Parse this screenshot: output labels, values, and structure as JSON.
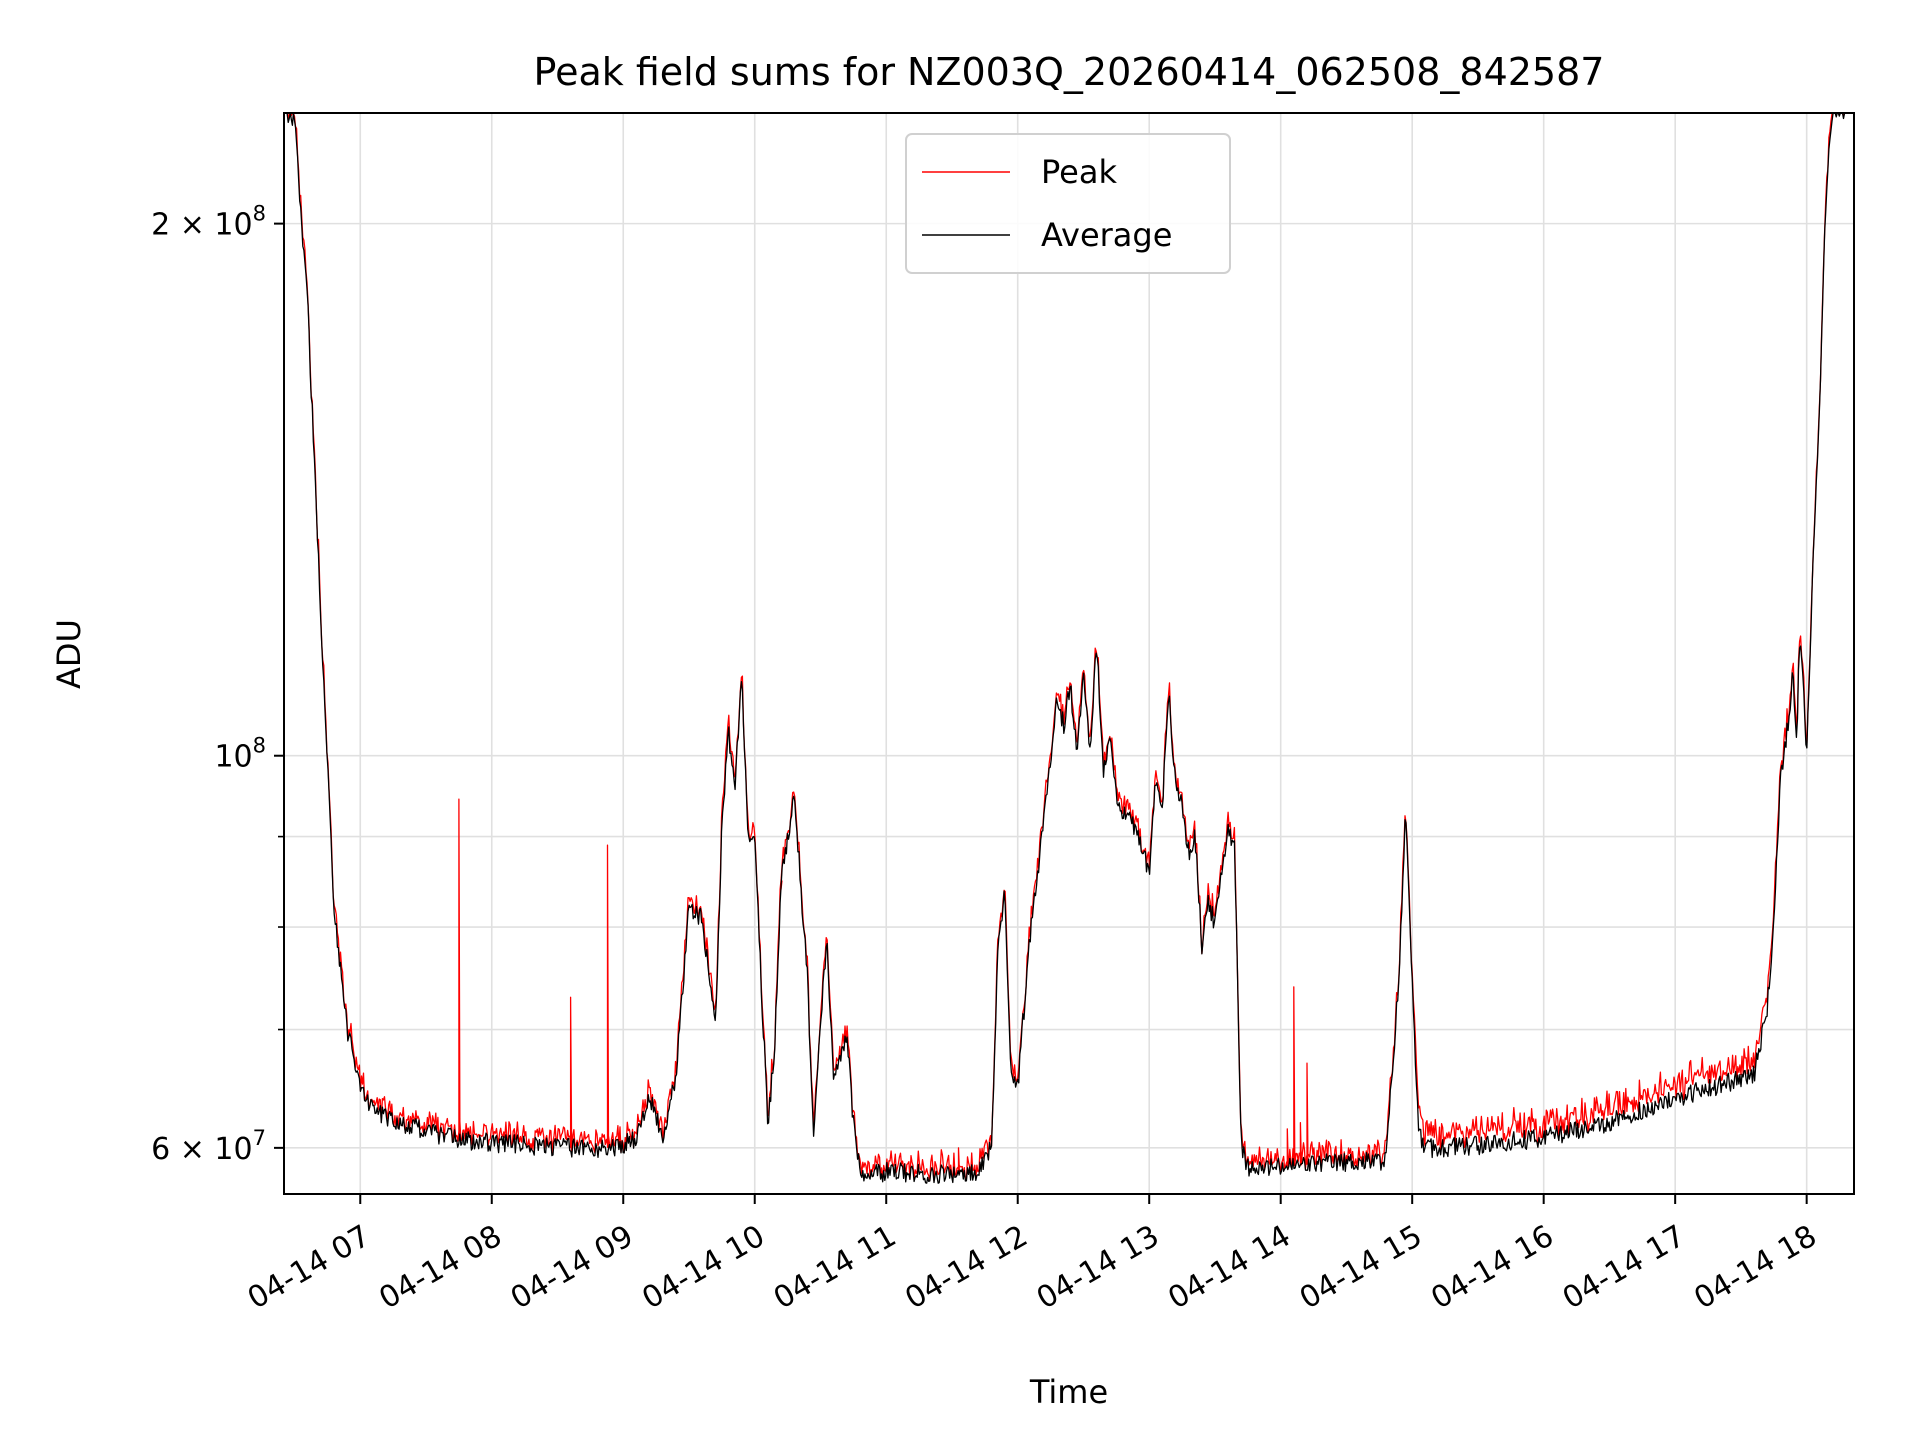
{
  "chart_data": {
    "type": "line",
    "title": "Peak field sums for NZ003Q_20260414_062508_842587",
    "xlabel": "Time",
    "ylabel": "ADU",
    "yscale": "log",
    "ylim": [
      56500000,
      231000000
    ],
    "xlim": [
      6.42,
      18.36
    ],
    "grid": true,
    "legend_position": "upper center",
    "x_ticks": [
      {
        "value": 7,
        "label": "04-14 07"
      },
      {
        "value": 8,
        "label": "04-14 08"
      },
      {
        "value": 9,
        "label": "04-14 09"
      },
      {
        "value": 10,
        "label": "04-14 10"
      },
      {
        "value": 11,
        "label": "04-14 11"
      },
      {
        "value": 12,
        "label": "04-14 12"
      },
      {
        "value": 13,
        "label": "04-14 13"
      },
      {
        "value": 14,
        "label": "04-14 14"
      },
      {
        "value": 15,
        "label": "04-14 15"
      },
      {
        "value": 16,
        "label": "04-14 16"
      },
      {
        "value": 17,
        "label": "04-14 17"
      },
      {
        "value": 18,
        "label": "04-14 18"
      }
    ],
    "y_major_ticks": [
      {
        "value": 60000000,
        "label": "6 × 10⁷",
        "base": "6 × 10",
        "exp": "7"
      },
      {
        "value": 100000000,
        "label": "10⁸",
        "base": "10",
        "exp": "8"
      },
      {
        "value": 200000000,
        "label": "2 × 10⁸",
        "base": "2 × 10",
        "exp": "8"
      }
    ],
    "y_minor_ticks": [
      70000000,
      80000000,
      90000000
    ],
    "series": [
      {
        "name": "Peak",
        "color": "#ff0000"
      },
      {
        "name": "Average",
        "color": "#000000"
      }
    ],
    "average_profile": {
      "x": [
        6.42,
        6.5,
        6.6,
        6.7,
        6.8,
        6.9,
        7.0,
        7.1,
        7.3,
        7.6,
        7.8,
        8.0,
        8.3,
        8.6,
        8.9,
        9.1,
        9.2,
        9.3,
        9.4,
        9.5,
        9.6,
        9.7,
        9.75,
        9.8,
        9.85,
        9.9,
        9.95,
        10.0,
        10.05,
        10.1,
        10.15,
        10.2,
        10.3,
        10.4,
        10.45,
        10.5,
        10.55,
        10.6,
        10.65,
        10.7,
        10.75,
        10.8,
        10.85,
        10.95,
        11.0,
        11.3,
        11.7,
        11.8,
        11.85,
        11.9,
        11.95,
        12.0,
        12.1,
        12.2,
        12.3,
        12.35,
        12.4,
        12.45,
        12.5,
        12.55,
        12.6,
        12.65,
        12.7,
        12.75,
        12.8,
        12.85,
        12.9,
        13.0,
        13.05,
        13.1,
        13.15,
        13.2,
        13.25,
        13.3,
        13.35,
        13.4,
        13.45,
        13.5,
        13.55,
        13.6,
        13.65,
        13.7,
        13.75,
        13.8,
        13.85,
        13.9,
        14.0,
        14.3,
        14.8,
        14.9,
        14.95,
        15.0,
        15.05,
        15.1,
        15.2,
        15.5,
        16.0,
        16.5,
        17.0,
        17.3,
        17.6,
        17.7,
        17.75,
        17.8,
        17.85,
        17.9,
        17.92,
        17.95,
        18.0,
        18.05,
        18.1,
        18.15,
        18.2,
        18.36
      ],
      "y": [
        232000000,
        229000000,
        180000000,
        120000000,
        82000000,
        70000000,
        65000000,
        63000000,
        62000000,
        61000000,
        60600000,
        60400000,
        60200000,
        60000000,
        60000000,
        60600000,
        64000000,
        61000000,
        66000000,
        82000000,
        81000000,
        70000000,
        91000000,
        103000000,
        96000000,
        112000000,
        90000000,
        91000000,
        74000000,
        62000000,
        68000000,
        85000000,
        95000000,
        75000000,
        61000000,
        71000000,
        78000000,
        66000000,
        67000000,
        70000000,
        62000000,
        58400000,
        58000000,
        58000000,
        58200000,
        58000000,
        58000000,
        60000000,
        78000000,
        84000000,
        66000000,
        65000000,
        80000000,
        92000000,
        108000000,
        104000000,
        110000000,
        100000000,
        112000000,
        100000000,
        116000000,
        98000000,
        103000000,
        95000000,
        93000000,
        92000000,
        91000000,
        86000000,
        97000000,
        94000000,
        108000000,
        96000000,
        94000000,
        88000000,
        90000000,
        78000000,
        83000000,
        80000000,
        86000000,
        91000000,
        89000000,
        60000000,
        58500000,
        58800000,
        58300000,
        58500000,
        58500000,
        58800000,
        59000000,
        75000000,
        93000000,
        75000000,
        61000000,
        60000000,
        60000000,
        60200000,
        60800000,
        62000000,
        64000000,
        65000000,
        66000000,
        72000000,
        80000000,
        97000000,
        103000000,
        112000000,
        100000000,
        118000000,
        100000000,
        130000000,
        160000000,
        210000000,
        232000000,
        232000000
      ]
    },
    "peak_spikes": [
      {
        "x": 7.75,
        "y": 94500000
      },
      {
        "x": 8.6,
        "y": 73000000
      },
      {
        "x": 8.88,
        "y": 89000000
      },
      {
        "x": 10.2,
        "y": 84000000
      },
      {
        "x": 11.55,
        "y": 60000000
      },
      {
        "x": 14.1,
        "y": 74000000
      },
      {
        "x": 14.2,
        "y": 67000000
      },
      {
        "x": 14.05,
        "y": 61500000
      },
      {
        "x": 14.15,
        "y": 62000000
      }
    ],
    "noise_seed": 42
  },
  "legend": {
    "peak_label": "Peak",
    "average_label": "Average"
  }
}
